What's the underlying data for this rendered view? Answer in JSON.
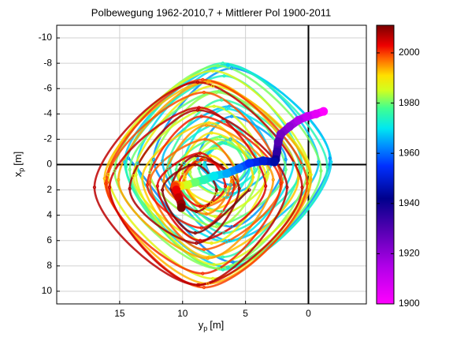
{
  "chart_data": {
    "type": "polar-motion",
    "title": "Polbewegung 1962-2010,7 + Mittlerer Pol 1900-2011",
    "xlabel": {
      "text": "y",
      "sub": "p",
      "unit": "[m]"
    },
    "ylabel": {
      "text": "x",
      "sub": "p",
      "unit": "[m]"
    },
    "xlim": [
      -4.6,
      20
    ],
    "x_reversed": true,
    "xticks": [
      15,
      10,
      5,
      0
    ],
    "ylim": [
      -11,
      11
    ],
    "y_reversed": true,
    "yticks": [
      -10,
      -8,
      -6,
      -4,
      -2,
      0,
      2,
      4,
      6,
      8,
      10
    ],
    "grid": true,
    "zero_lines": true,
    "colorbar": {
      "lim": [
        1900,
        2011
      ],
      "ticks": [
        1900,
        1920,
        1940,
        1960,
        1980,
        2000
      ]
    },
    "colormap": [
      {
        "value": 1900,
        "color": "#ff00ff"
      },
      {
        "value": 1915,
        "color": "#b000e8"
      },
      {
        "value": 1930,
        "color": "#5000b0"
      },
      {
        "value": 1942,
        "color": "#00008c"
      },
      {
        "value": 1955,
        "color": "#0030ff"
      },
      {
        "value": 1963,
        "color": "#0090ff"
      },
      {
        "value": 1970,
        "color": "#00e8f0"
      },
      {
        "value": 1978,
        "color": "#40ff90"
      },
      {
        "value": 1985,
        "color": "#d0ff20"
      },
      {
        "value": 1991,
        "color": "#ffe000"
      },
      {
        "value": 1998,
        "color": "#ff6000"
      },
      {
        "value": 2003,
        "color": "#ee0000"
      },
      {
        "value": 2011,
        "color": "#7a0000"
      }
    ],
    "series": [
      {
        "kind": "wobble",
        "t": [
          1962.0,
          1962.3,
          1962.6,
          1962.9,
          1963.2,
          1963.5,
          1963.8,
          1964.1,
          1964.4,
          1964.7,
          1965.0,
          1965.3,
          1965.6,
          1965.9,
          1966.2,
          1966.5,
          1966.8,
          1967.1,
          1967.4,
          1967.7,
          1968.0,
          1968.3,
          1968.6,
          1968.9,
          1969.2,
          1969.5,
          1969.8,
          1970.1,
          1970.4,
          1970.7,
          1971.0,
          1971.3,
          1971.6,
          1971.9,
          1972.2,
          1972.5,
          1972.8,
          1973.1,
          1973.4,
          1973.7,
          1974.0,
          1974.3,
          1974.6,
          1974.9,
          1975.2,
          1975.5,
          1975.8,
          1976.1,
          1976.4,
          1976.7,
          1977.0,
          1977.3,
          1977.6,
          1977.9,
          1978.2,
          1978.5,
          1978.8,
          1979.1,
          1979.4,
          1979.7,
          1980.0,
          1980.3,
          1980.6,
          1980.9,
          1981.2,
          1981.5,
          1981.8,
          1982.1,
          1982.4,
          1982.7,
          1983.0,
          1983.3,
          1983.6,
          1983.9,
          1984.2,
          1984.5,
          1984.8,
          1985.1,
          1985.4,
          1985.7,
          1986.0,
          1986.3,
          1986.6,
          1986.9,
          1987.2,
          1987.5,
          1987.8,
          1988.1,
          1988.4,
          1988.7,
          1989.0,
          1989.3,
          1989.6,
          1989.9,
          1990.2,
          1990.5,
          1990.8,
          1991.1,
          1991.4,
          1991.7,
          1992.0,
          1992.3,
          1992.6,
          1992.9,
          1993.2,
          1993.5,
          1993.8,
          1994.1,
          1994.4,
          1994.7,
          1995.0,
          1995.3,
          1995.6,
          1995.9,
          1996.2,
          1996.5,
          1996.8,
          1997.1,
          1997.4,
          1997.7,
          1998.0,
          1998.3,
          1998.6,
          1998.9,
          1999.2,
          1999.5,
          1999.8,
          2000.1,
          2000.4,
          2000.7,
          2001.0,
          2001.3,
          2001.6,
          2001.9,
          2002.2,
          2002.5,
          2002.8,
          2003.1,
          2003.4,
          2003.7,
          2004.0,
          2004.3,
          2004.6,
          2004.9,
          2005.2,
          2005.5,
          2005.8,
          2006.1,
          2006.4,
          2006.7,
          2007.0,
          2007.3,
          2007.6,
          2007.9,
          2008.2,
          2008.5,
          2008.8,
          2009.1,
          2009.4,
          2009.7,
          2010.0,
          2010.3,
          2010.6
        ],
        "x": [
          14.3,
          6.0,
          -1.7,
          6.1,
          12.3,
          6.1,
          1.8,
          6.1,
          8.8,
          6.2,
          4.5,
          6.2,
          8.2,
          6.2,
          2.9,
          6.3,
          11.6,
          6.3,
          -0.8,
          6.4,
          14.6,
          6.4,
          -1.8,
          6.4,
          13.6,
          6.5,
          1.2,
          6.5,
          9.9,
          6.5,
          4.6,
          6.6,
          8.3,
          6.6,
          4.0,
          6.7,
          11.0,
          6.7,
          0.5,
          6.7,
          14.5,
          6.8,
          -1.5,
          6.8,
          14.5,
          6.8,
          0.7,
          6.9,
          11.2,
          6.9,
          4.3,
          7.0,
          8.7,
          7.0,
          5.0,
          7.0,
          10.5,
          7.1,
          1.8,
          7.1,
          14.2,
          7.1,
          -1.0,
          7.2,
          15.4,
          7.2,
          0.1,
          7.3,
          12.6,
          7.3,
          3.9,
          7.3,
          9.4,
          7.4,
          5.7,
          7.4,
          10.0,
          7.4,
          3.2,
          7.5,
          13.7,
          7.5,
          -0.2,
          7.6,
          15.9,
          7.6,
          -0.1,
          7.6,
          13.9,
          7.7,
          3.4,
          7.7,
          10.3,
          7.7,
          6.1,
          7.8,
          9.8,
          7.8,
          4.4,
          7.9,
          13.2,
          7.9,
          0.8,
          7.9,
          16.2,
          8.0,
          -0.2,
          8.0,
          15.1,
          8.0,
          2.8,
          8.1,
          11.5,
          8.1,
          6.1,
          8.2,
          9.9,
          8.2,
          5.6,
          8.2,
          12.6,
          8.3,
          2.1,
          8.3,
          16.0,
          8.3,
          0.1,
          8.4,
          16.1,
          8.4,
          2.2,
          8.5,
          12.8,
          8.5,
          5.9,
          8.5,
          10.3,
          8.6,
          6.6,
          8.6,
          12.0,
          8.6,
          3.4,
          8.7,
          15.8,
          8.7,
          0.5,
          8.8,
          17.0,
          8.8,
          1.7,
          8.8,
          14.2,
          8.9,
          5.5,
          8.9,
          10.9,
          8.9,
          7.3,
          9.0,
          11.6,
          9.0,
          4.7
        ],
        "y": [
          -0.5,
          7.7,
          -0.5,
          -7.6,
          -0.4,
          4.9,
          -0.4,
          -3.8,
          -0.4,
          1.6,
          -0.3,
          -2.0,
          -0.3,
          2.3,
          -0.3,
          -4.6,
          -0.3,
          6.0,
          -0.2,
          -7.9,
          -0.2,
          8.1,
          -0.2,
          -7.8,
          -0.1,
          6.1,
          -0.1,
          -4.4,
          -0.1,
          2.6,
          0.0,
          -1.7,
          0.0,
          2.0,
          0.0,
          -3.4,
          0.1,
          5.4,
          0.1,
          -7.0,
          0.1,
          8.3,
          0.2,
          -8.0,
          0.2,
          7.3,
          0.2,
          -5.1,
          0.3,
          3.7,
          0.3,
          -1.7,
          0.3,
          2.0,
          0.3,
          -2.2,
          0.4,
          4.7,
          0.4,
          -5.8,
          0.4,
          8.2,
          0.5,
          -7.8,
          0.5,
          8.2,
          0.5,
          -5.7,
          0.6,
          4.9,
          0.6,
          -2.0,
          0.6,
          2.3,
          0.7,
          -1.3,
          0.7,
          4.1,
          0.7,
          -4.6,
          0.8,
          7.9,
          0.8,
          -7.4,
          0.8,
          9.0,
          0.8,
          -6.2,
          0.9,
          6.2,
          0.9,
          -2.5,
          0.9,
          3.0,
          1.0,
          -0.7,
          1.0,
          3.6,
          1.0,
          -3.3,
          1.1,
          7.3,
          1.1,
          -6.6,
          1.1,
          9.4,
          1.2,
          -6.5,
          1.2,
          7.4,
          1.2,
          -3.1,
          1.3,
          3.9,
          1.3,
          -0.4,
          1.3,
          3.3,
          1.3,
          -2.0,
          1.4,
          6.7,
          1.4,
          -5.7,
          1.4,
          9.7,
          1.5,
          -6.7,
          1.5,
          8.6,
          1.5,
          -3.8,
          1.6,
          5.0,
          1.6,
          -0.4,
          1.6,
          3.3,
          1.7,
          -0.9,
          1.7,
          6.0,
          1.7,
          -4.5,
          1.8,
          9.5,
          1.8,
          -6.5,
          1.8,
          9.5,
          1.8,
          -4.3,
          1.9,
          6.2,
          1.9,
          -0.7,
          1.9,
          3.7,
          2.0,
          0.0,
          2.0,
          5.4,
          2.0
        ]
      },
      {
        "kind": "mean-pole",
        "t": [
          1900,
          1905,
          1910,
          1915,
          1920,
          1925,
          1930,
          1935,
          1940,
          1945,
          1950,
          1955,
          1960,
          1965,
          1970,
          1975,
          1980,
          1985,
          1990,
          1995,
          2000,
          2003,
          2006,
          2009,
          2011
        ],
        "x": [
          -1.2,
          -0.6,
          0.1,
          0.8,
          1.5,
          2.2,
          2.4,
          2.5,
          2.6,
          2.7,
          3.6,
          4.7,
          5.5,
          6.5,
          7.5,
          8.3,
          9.0,
          9.6,
          10.2,
          10.5,
          10.6,
          10.5,
          10.3,
          10.1,
          10.1
        ],
        "y": [
          -4.2,
          -4.0,
          -3.8,
          -3.5,
          -3.0,
          -2.4,
          -1.8,
          -1.0,
          -0.4,
          -0.2,
          -0.3,
          -0.1,
          0.3,
          0.7,
          0.9,
          1.2,
          1.4,
          1.6,
          1.7,
          1.6,
          1.7,
          2.0,
          2.6,
          3.1,
          3.4
        ]
      }
    ]
  }
}
